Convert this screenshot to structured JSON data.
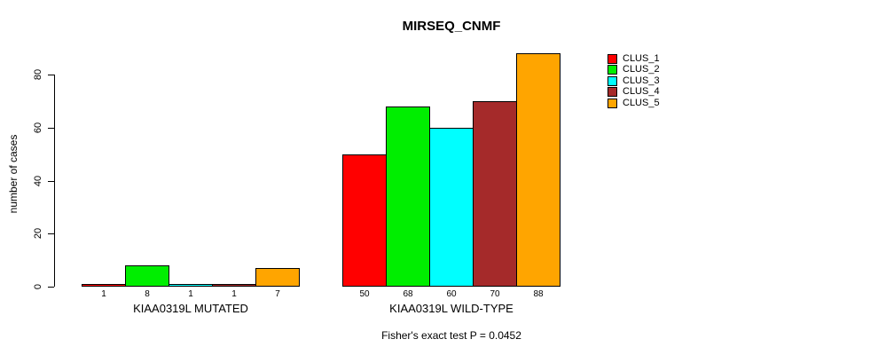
{
  "title": "MIRSEQ_CNMF",
  "footer": "Fisher's exact test P = 0.0452",
  "chart_data": {
    "type": "bar",
    "title": "MIRSEQ_CNMF",
    "xlabel": "",
    "ylabel": "number of cases",
    "ylim": [
      0,
      88
    ],
    "yticks": [
      0,
      20,
      40,
      60,
      80
    ],
    "grid": false,
    "legend_position": "right",
    "categories": [
      "KIAA0319L MUTATED",
      "KIAA0319L WILD-TYPE"
    ],
    "series": [
      {
        "name": "CLUS_1",
        "color": "#FF0000",
        "values": [
          1,
          50
        ]
      },
      {
        "name": "CLUS_2",
        "color": "#00EE00",
        "values": [
          8,
          68
        ]
      },
      {
        "name": "CLUS_3",
        "color": "#00FFFF",
        "values": [
          1,
          60
        ]
      },
      {
        "name": "CLUS_4",
        "color": "#A52A2A",
        "values": [
          1,
          70
        ]
      },
      {
        "name": "CLUS_5",
        "color": "#FFA500",
        "values": [
          7,
          88
        ]
      }
    ],
    "groups": [
      {
        "label": "KIAA0319L MUTATED",
        "values": [
          1,
          8,
          1,
          1,
          7
        ]
      },
      {
        "label": "KIAA0319L WILD-TYPE",
        "values": [
          50,
          68,
          60,
          70,
          88
        ]
      }
    ],
    "bar_value_labels": [
      [
        "1",
        "8",
        "1",
        "1",
        "7"
      ],
      [
        "50",
        "68",
        "60",
        "70",
        "88"
      ]
    ],
    "annotation": "Fisher's exact test P = 0.0452"
  },
  "legend": {
    "items": [
      {
        "label": "CLUS_1",
        "color": "#FF0000"
      },
      {
        "label": "CLUS_2",
        "color": "#00EE00"
      },
      {
        "label": "CLUS_3",
        "color": "#00FFFF"
      },
      {
        "label": "CLUS_4",
        "color": "#A52A2A"
      },
      {
        "label": "CLUS_5",
        "color": "#FFA500"
      }
    ]
  }
}
